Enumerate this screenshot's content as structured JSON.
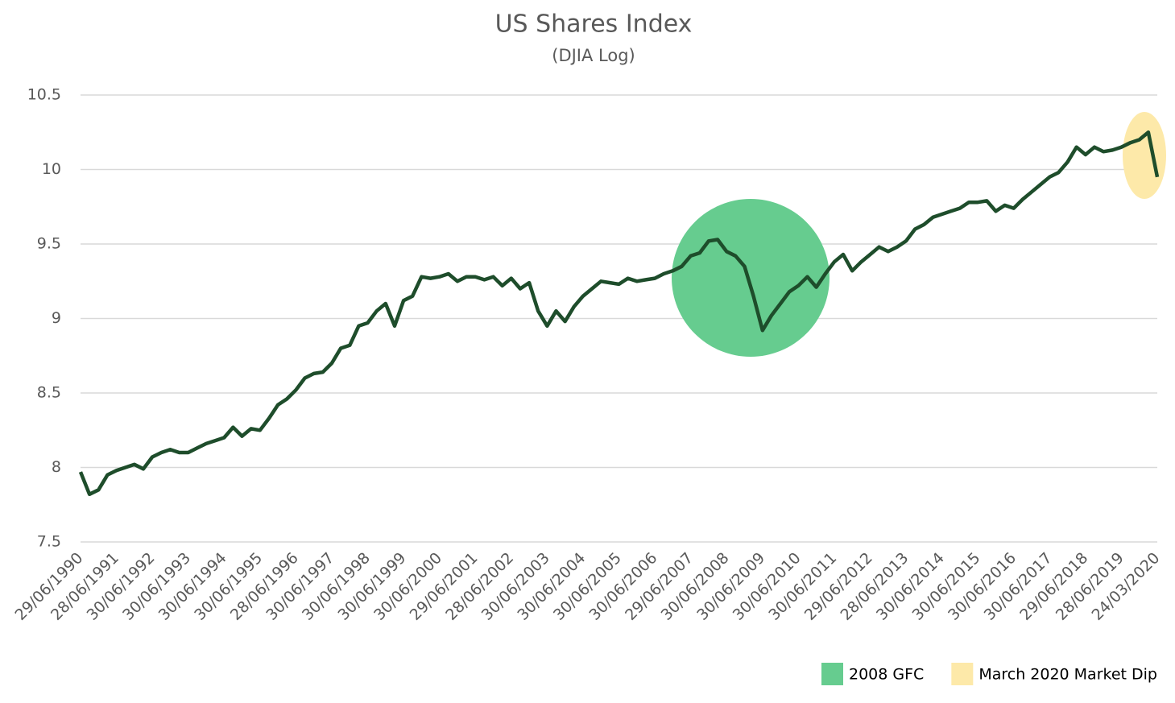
{
  "chart_data": {
    "type": "line",
    "title": "US Shares Index",
    "subtitle": "(DJIA Log)",
    "categories": [
      "29/06/1990",
      null,
      null,
      null,
      "28/06/1991",
      null,
      null,
      null,
      "30/06/1992",
      null,
      null,
      null,
      "30/06/1993",
      null,
      null,
      null,
      "30/06/1994",
      null,
      null,
      null,
      "30/06/1995",
      null,
      null,
      null,
      "28/06/1996",
      null,
      null,
      null,
      "30/06/1997",
      null,
      null,
      null,
      "30/06/1998",
      null,
      null,
      null,
      "30/06/1999",
      null,
      null,
      null,
      "30/06/2000",
      null,
      null,
      null,
      "29/06/2001",
      null,
      null,
      null,
      "28/06/2002",
      null,
      null,
      null,
      "30/06/2003",
      null,
      null,
      null,
      "30/06/2004",
      null,
      null,
      null,
      "30/06/2005",
      null,
      null,
      null,
      "30/06/2006",
      null,
      null,
      null,
      "29/06/2007",
      null,
      null,
      null,
      "30/06/2008",
      null,
      null,
      null,
      "30/06/2009",
      null,
      null,
      null,
      "30/06/2010",
      null,
      null,
      null,
      "30/06/2011",
      null,
      null,
      null,
      "29/06/2012",
      null,
      null,
      null,
      "28/06/2013",
      null,
      null,
      null,
      "30/06/2014",
      null,
      null,
      null,
      "30/06/2015",
      null,
      null,
      null,
      "30/06/2016",
      null,
      null,
      null,
      "30/06/2017",
      null,
      null,
      null,
      "29/06/2018",
      null,
      null,
      null,
      "28/06/2019",
      null,
      null,
      null,
      "24/03/2020"
    ],
    "series": [
      {
        "color": "#1e4d2b",
        "values": [
          7.97,
          7.82,
          7.85,
          7.95,
          7.98,
          8.0,
          8.02,
          7.99,
          8.07,
          8.1,
          8.12,
          8.1,
          8.1,
          8.13,
          8.16,
          8.18,
          8.2,
          8.27,
          8.21,
          8.26,
          8.25,
          8.33,
          8.42,
          8.46,
          8.52,
          8.6,
          8.63,
          8.64,
          8.7,
          8.8,
          8.82,
          8.95,
          8.97,
          9.05,
          9.1,
          8.95,
          9.12,
          9.15,
          9.28,
          9.27,
          9.28,
          9.3,
          9.25,
          9.28,
          9.28,
          9.26,
          9.28,
          9.22,
          9.27,
          9.2,
          9.24,
          9.05,
          8.95,
          9.05,
          8.98,
          9.08,
          9.15,
          9.2,
          9.25,
          9.24,
          9.23,
          9.27,
          9.25,
          9.26,
          9.27,
          9.3,
          9.32,
          9.35,
          9.42,
          9.44,
          9.52,
          9.53,
          9.45,
          9.42,
          9.35,
          9.15,
          8.92,
          9.02,
          9.1,
          9.18,
          9.22,
          9.28,
          9.21,
          9.3,
          9.38,
          9.43,
          9.32,
          9.38,
          9.43,
          9.48,
          9.45,
          9.48,
          9.52,
          9.6,
          9.63,
          9.68,
          9.7,
          9.72,
          9.74,
          9.78,
          9.78,
          9.79,
          9.72,
          9.76,
          9.74,
          9.8,
          9.85,
          9.9,
          9.95,
          9.98,
          10.05,
          10.15,
          10.1,
          10.15,
          10.12,
          10.13,
          10.15,
          10.18,
          10.2,
          10.25,
          9.95
        ]
      }
    ],
    "ylim": [
      7.5,
      10.5
    ],
    "yticks": [
      7.5,
      8,
      8.5,
      9,
      9.5,
      10,
      10.5
    ],
    "grid": true,
    "highlights": [
      {
        "name": "2008 GFC",
        "color": "#66cc8f"
      },
      {
        "name": "March 2020 Market Dip",
        "color": "#fde9a9"
      }
    ]
  }
}
